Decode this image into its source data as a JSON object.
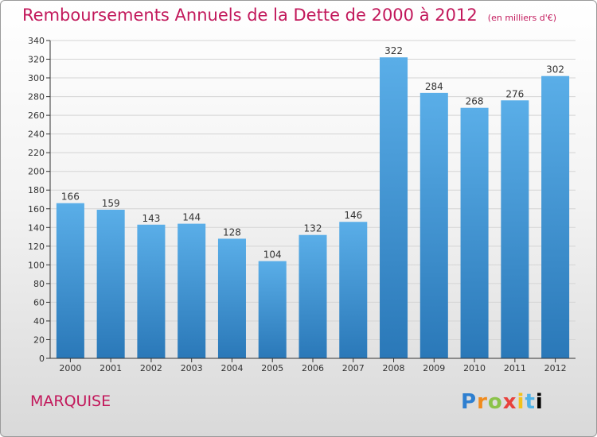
{
  "header": {
    "title": "Remboursements Annuels de la Dette de 2000 à 2012",
    "subtitle": "(en milliers d'€)"
  },
  "footer": {
    "place": "MARQUISE",
    "brand": "Proxiti"
  },
  "colors": {
    "bar_top": "#5aaee8",
    "bar_bottom": "#2a78b8",
    "title": "#c2185b",
    "axis": "#333333",
    "grid": "#d4d4d4"
  },
  "chart_data": {
    "type": "bar",
    "title": "Remboursements Annuels de la Dette de 2000 à 2012",
    "subtitle": "(en milliers d'€)",
    "categories": [
      "2000",
      "2001",
      "2002",
      "2003",
      "2004",
      "2005",
      "2006",
      "2007",
      "2008",
      "2009",
      "2010",
      "2011",
      "2012"
    ],
    "values": [
      166,
      159,
      143,
      144,
      128,
      104,
      132,
      146,
      322,
      284,
      268,
      276,
      302
    ],
    "ylim": [
      0,
      340
    ],
    "yticks": [
      0,
      20,
      40,
      60,
      80,
      100,
      120,
      140,
      160,
      180,
      200,
      220,
      240,
      260,
      280,
      300,
      320,
      340
    ],
    "xlabel": "",
    "ylabel": "",
    "grid": true,
    "data_labels": true
  }
}
